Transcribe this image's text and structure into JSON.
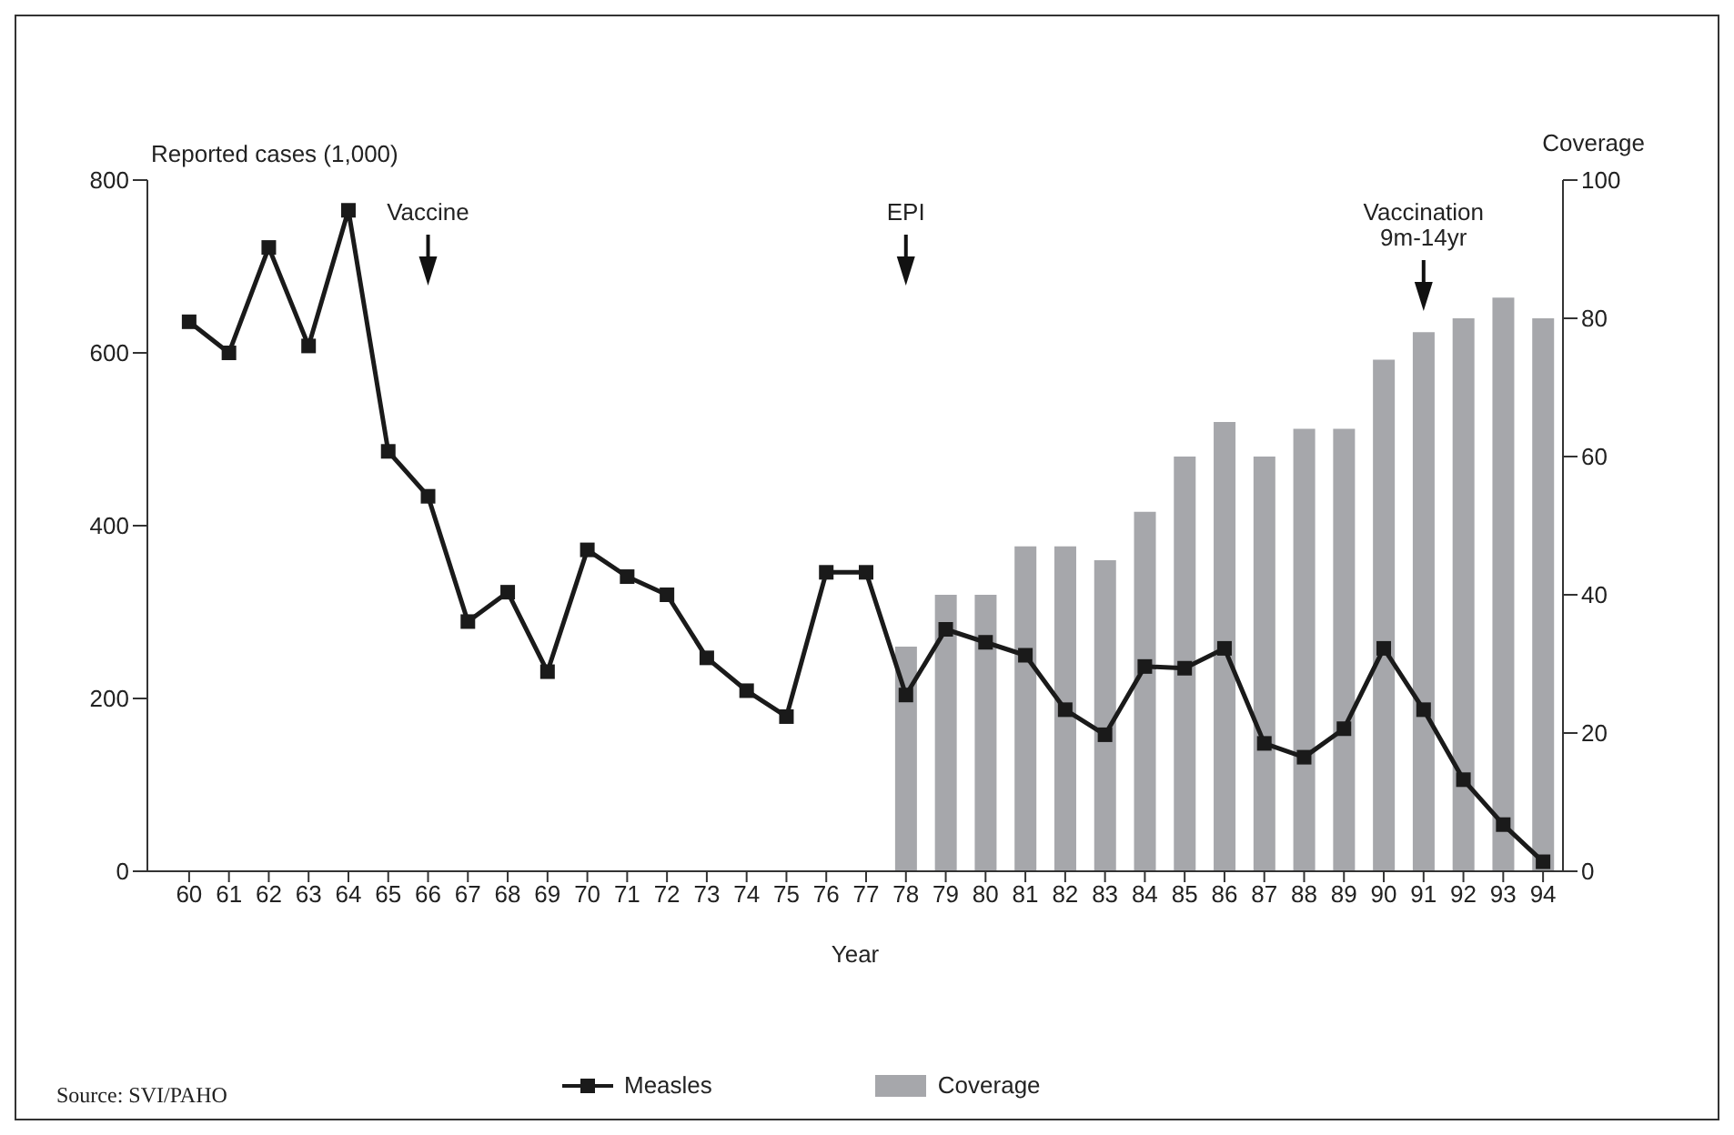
{
  "chart_data": {
    "type": "bar",
    "xlabel": "Year",
    "ylabel": "Reported cases (1,000)",
    "y2label": "Coverage",
    "categories": [
      "60",
      "61",
      "62",
      "63",
      "64",
      "65",
      "66",
      "67",
      "68",
      "69",
      "70",
      "71",
      "72",
      "73",
      "74",
      "75",
      "76",
      "77",
      "78",
      "79",
      "80",
      "81",
      "82",
      "83",
      "84",
      "85",
      "86",
      "87",
      "88",
      "89",
      "90",
      "91",
      "92",
      "93",
      "94"
    ],
    "series": [
      {
        "name": "Measles",
        "type": "line",
        "color": "#1a1a1a",
        "values": [
          636,
          600,
          722,
          608,
          765,
          486,
          434,
          289,
          323,
          231,
          372,
          341,
          320,
          247,
          209,
          179,
          346,
          346,
          204,
          280,
          265,
          250,
          187,
          158,
          237,
          235,
          258,
          148,
          132,
          165,
          258,
          187,
          106,
          54,
          11
        ]
      },
      {
        "name": "Coverage",
        "axis": "y2",
        "color": "#a6a7ab",
        "values": [
          null,
          null,
          null,
          null,
          null,
          null,
          null,
          null,
          null,
          null,
          null,
          null,
          null,
          null,
          null,
          null,
          null,
          null,
          32.5,
          40,
          40,
          47,
          47,
          45,
          52,
          60,
          65,
          60,
          64,
          64,
          74,
          78,
          80,
          83,
          80
        ]
      }
    ],
    "ylim": [
      0,
      800
    ],
    "yticks": [
      0,
      200,
      400,
      600,
      800
    ],
    "y2lim": [
      0,
      100
    ],
    "y2ticks": [
      0,
      20,
      40,
      60,
      80,
      100
    ],
    "grid": false,
    "legend": "bottom",
    "marker": "square",
    "line_style": "solid",
    "annotations": [
      {
        "text": "Vaccine",
        "x": "66"
      },
      {
        "text": "EPI",
        "x": "78"
      },
      {
        "text": "Vaccination\n9m-14yr",
        "x": "91"
      },
      "Source: SVI/PAHO"
    ]
  }
}
